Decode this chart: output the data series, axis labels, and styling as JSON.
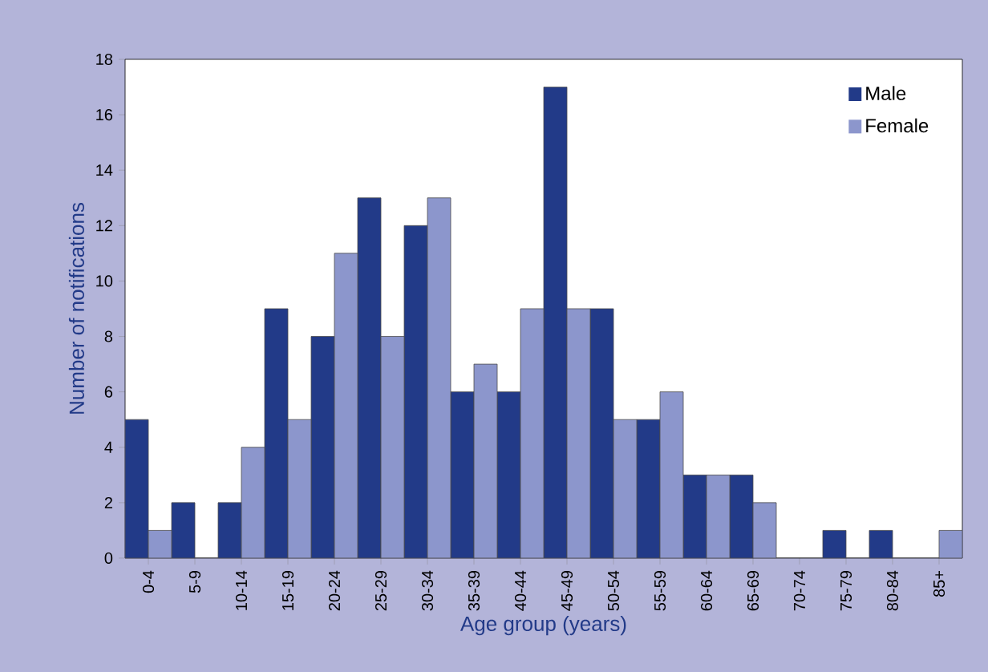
{
  "chart_data": {
    "type": "bar",
    "xlabel": "Age group (years)",
    "ylabel": "Number of notifications",
    "categories": [
      "0-4",
      "5-9",
      "10-14",
      "15-19",
      "20-24",
      "25-29",
      "30-34",
      "35-39",
      "40-44",
      "45-49",
      "50-54",
      "55-59",
      "60-64",
      "65-69",
      "70-74",
      "75-79",
      "80-84",
      "85+"
    ],
    "series": [
      {
        "name": "Male",
        "color": "#223a88",
        "values": [
          5,
          2,
          2,
          9,
          8,
          13,
          12,
          6,
          6,
          17,
          9,
          5,
          3,
          3,
          0,
          1,
          1,
          0
        ]
      },
      {
        "name": "Female",
        "color": "#8c96cc",
        "values": [
          1,
          0,
          4,
          5,
          11,
          8,
          13,
          7,
          9,
          9,
          5,
          6,
          3,
          2,
          0,
          0,
          0,
          1
        ]
      }
    ],
    "ylim": [
      0,
      18
    ],
    "yticks": [
      0,
      2,
      4,
      6,
      8,
      10,
      12,
      14,
      16,
      18
    ],
    "grid": false,
    "legend": "top right"
  }
}
